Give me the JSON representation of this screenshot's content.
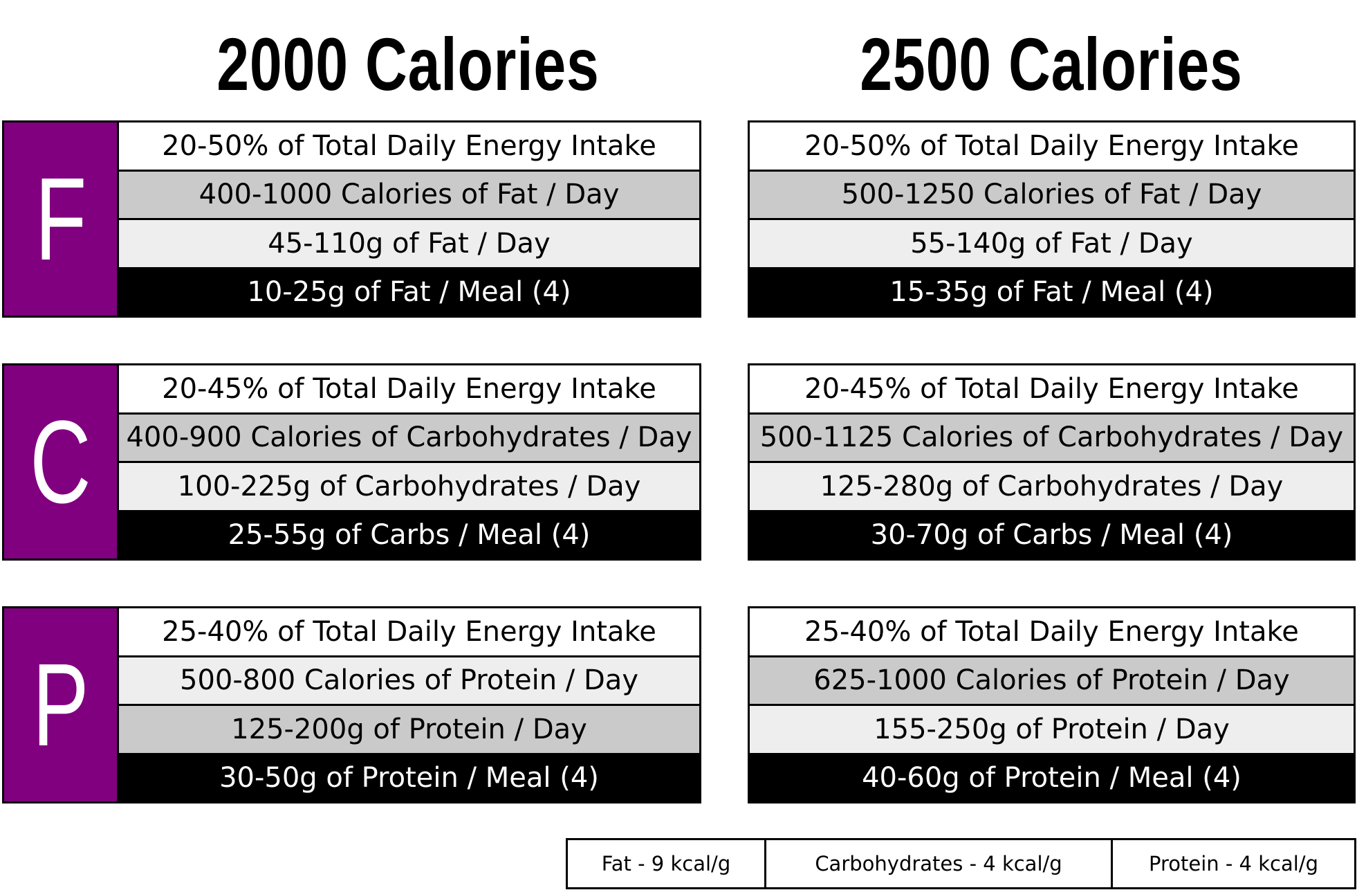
{
  "columns": [
    {
      "title": "2000 Calories",
      "macros": [
        {
          "letter": "F",
          "rows": [
            "20-50% of Total Daily Energy Intake",
            "400-1000 Calories of Fat / Day",
            "45-110g of Fat / Day",
            "10-25g of Fat / Meal (4)"
          ]
        },
        {
          "letter": "C",
          "rows": [
            "20-45% of Total Daily Energy Intake",
            "400-900 Calories of Carbohydrates / Day",
            "100-225g of Carbohydrates / Day",
            "25-55g of Carbs / Meal (4)"
          ]
        },
        {
          "letter": "P",
          "rows": [
            "25-40% of Total Daily Energy Intake",
            "500-800 Calories of Protein / Day",
            "125-200g of Protein / Day",
            "30-50g of Protein / Meal (4)"
          ]
        }
      ]
    },
    {
      "title": "2500 Calories",
      "macros": [
        {
          "rows": [
            "20-50% of Total Daily Energy Intake",
            "500-1250 Calories of Fat / Day",
            "55-140g of Fat / Day",
            "15-35g of Fat / Meal (4)"
          ]
        },
        {
          "rows": [
            "20-45% of Total Daily Energy Intake",
            "500-1125 Calories of Carbohydrates / Day",
            "125-280g of Carbohydrates / Day",
            "30-70g of Carbs / Meal (4)"
          ]
        },
        {
          "rows": [
            "25-40% of Total Daily Energy Intake",
            "625-1000 Calories of Protein / Day",
            "155-250g of Protein / Day",
            "40-60g of Protein / Meal (4)"
          ]
        }
      ]
    }
  ],
  "legend": [
    "Fat - 9 kcal/g",
    "Carbohydrates - 4 kcal/g",
    "Protein - 4 kcal/g"
  ],
  "colors": {
    "accent_purple": "#800080",
    "row_white": "#ffffff",
    "row_gray": "#cacaca",
    "row_light": "#eeeeee",
    "row_black": "#000000"
  }
}
